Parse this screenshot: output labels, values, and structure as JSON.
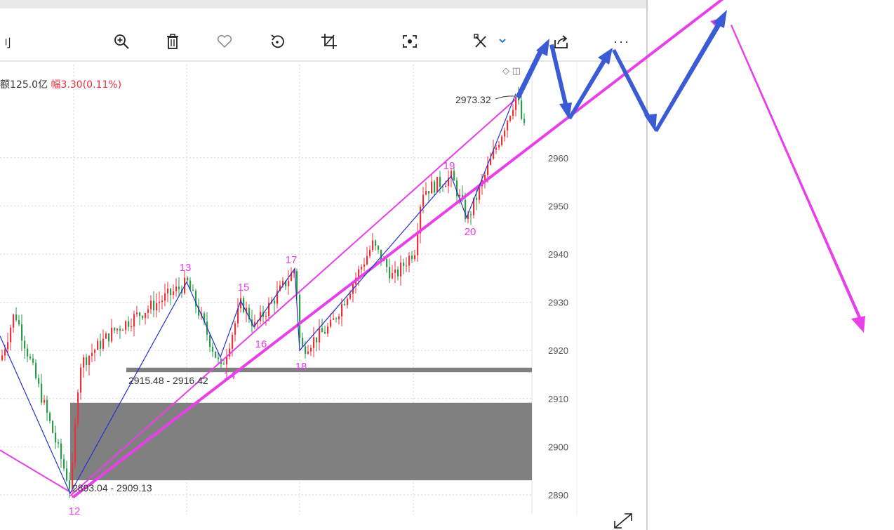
{
  "toolbar": {
    "left_label": "刂",
    "tools": [
      {
        "name": "zoom-in-icon"
      },
      {
        "name": "trash-icon"
      },
      {
        "name": "heart-icon"
      },
      {
        "name": "rotate-icon"
      },
      {
        "name": "crop-icon"
      },
      {
        "name": "focus-icon"
      },
      {
        "name": "draw-icon"
      },
      {
        "name": "share-icon"
      },
      {
        "name": "more-icon"
      }
    ],
    "more_label": "···"
  },
  "info": {
    "amount_text": "额125.0亿",
    "change_label": "幅",
    "change_value": "3.30(0.11%)"
  },
  "corner_icons": "◇ ◫",
  "chart_data": {
    "type": "candlestick",
    "ylim": [
      2887,
      2976
    ],
    "y_ticks": [
      2890,
      2900,
      2910,
      2920,
      2930,
      2940,
      2950,
      2960
    ],
    "wave_labels": [
      {
        "label": "12",
        "price": 2888.8
      },
      {
        "label": "13",
        "price": 2936.8
      },
      {
        "label": "14",
        "price": 2915.0
      },
      {
        "label": "15",
        "price": 2932.8
      },
      {
        "label": "16",
        "price": 2921.5
      },
      {
        "label": "17",
        "price": 2939.2
      },
      {
        "label": "18",
        "price": 2916.6
      },
      {
        "label": "19",
        "price": 2957.5
      },
      {
        "label": "20",
        "price": 2945.7
      }
    ],
    "zigzag_prices": [
      2923.0,
      2890.3,
      2934.2,
      2918.6,
      2930.3,
      2924.9,
      2937.0,
      2920.0,
      2956.2,
      2947.6,
      2973.3
    ],
    "annotations": {
      "high": "2973.32",
      "zone_upper": "2915.48 - 2916.42",
      "zone_lower": "2893.04 - 2909.13"
    },
    "zones": [
      {
        "from": 2915.48,
        "to": 2916.42,
        "color": "#808080"
      },
      {
        "from": 2893.04,
        "to": 2909.13,
        "color": "#808080"
      }
    ],
    "colors": {
      "up": "#e8323c",
      "down": "#2e9a4b",
      "trend": "#e83fe8",
      "zigzag": "#2233cc",
      "arrow": "#3b5bd6",
      "grid": "#d6d6d6"
    }
  }
}
